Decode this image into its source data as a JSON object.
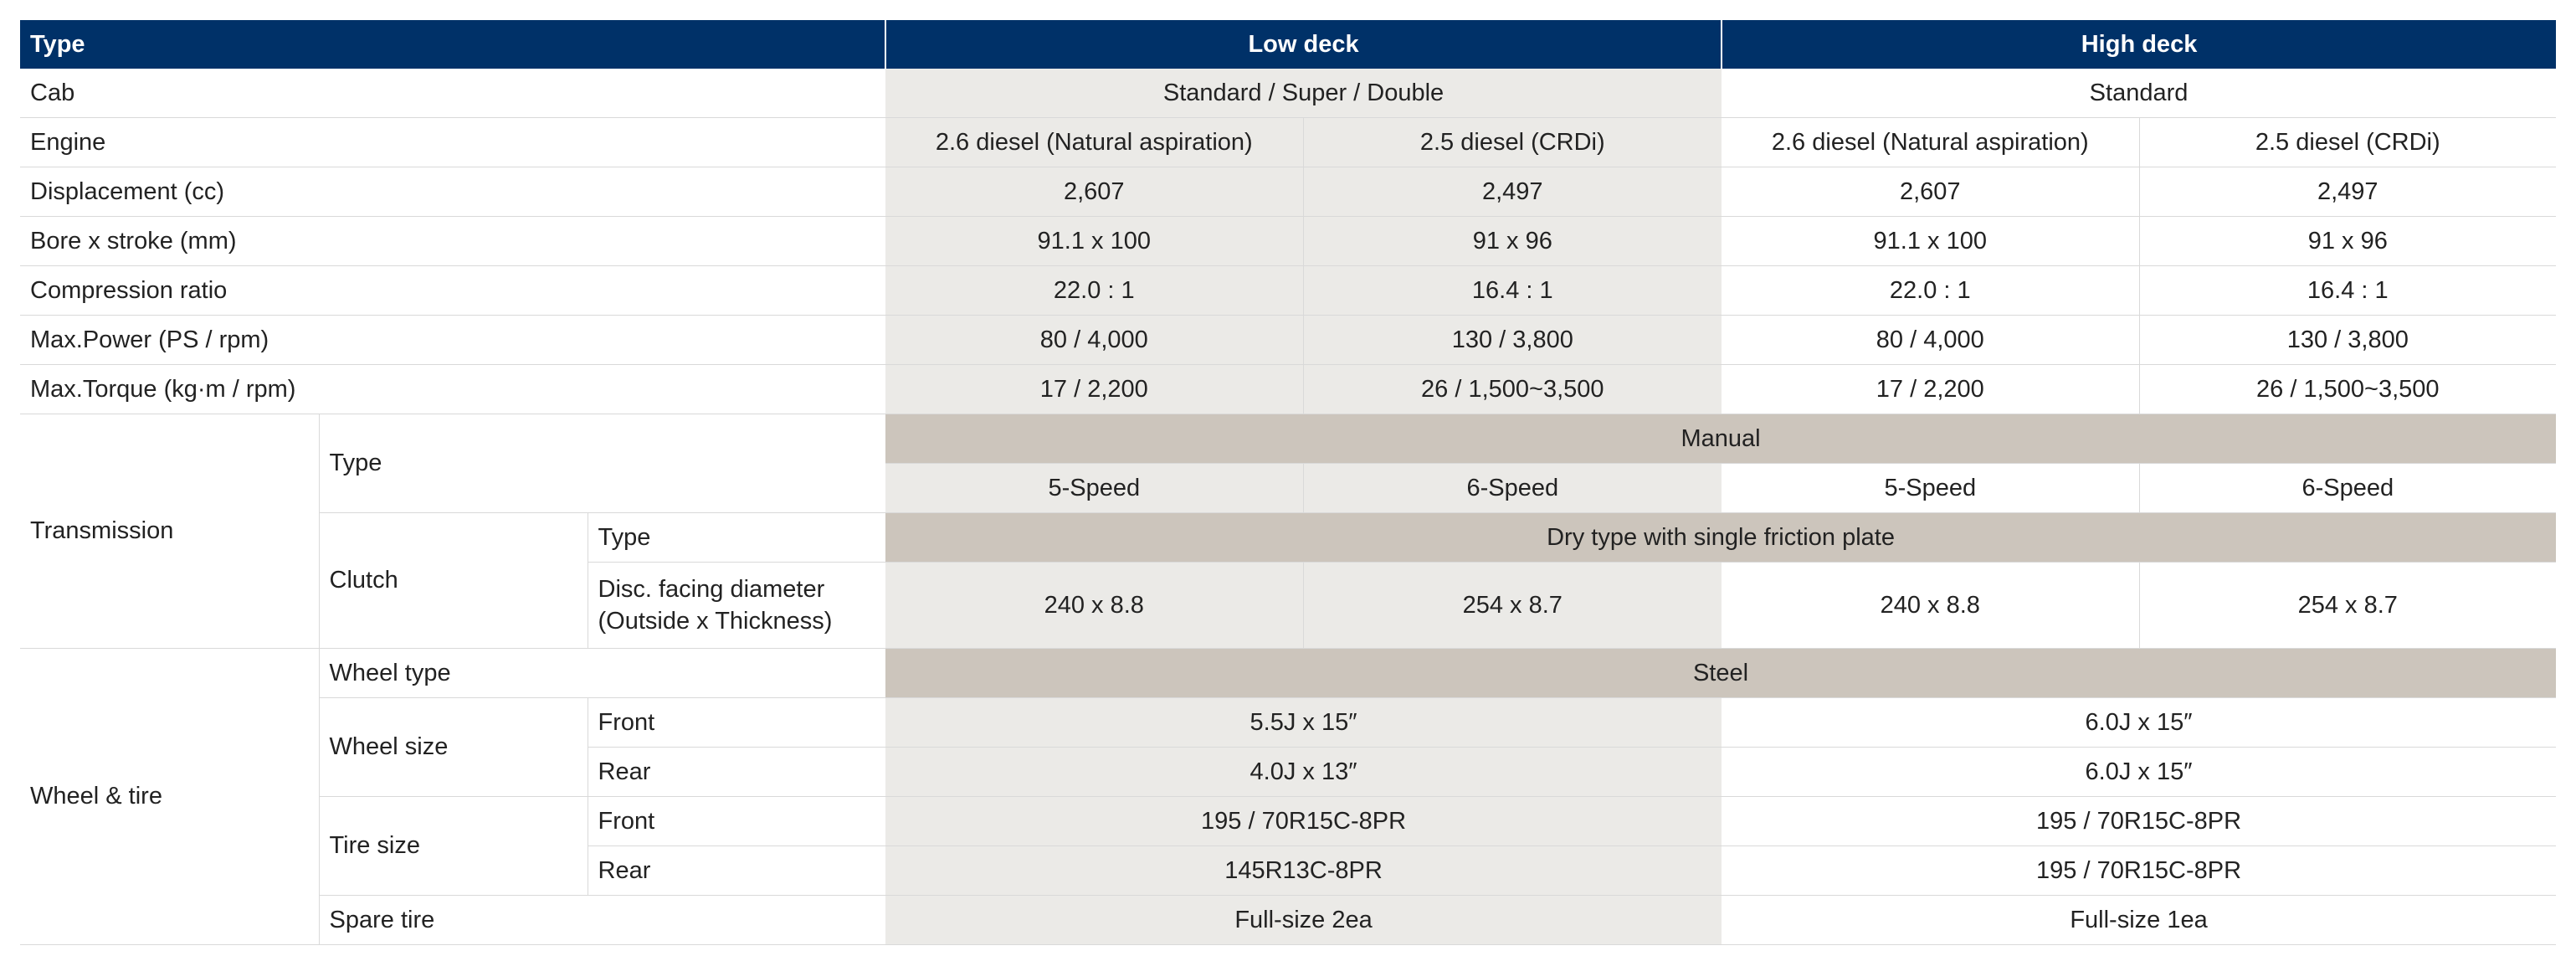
{
  "header": {
    "type": "Type",
    "low_deck": "Low deck",
    "high_deck": "High deck"
  },
  "cab": {
    "label": "Cab",
    "low": "Standard / Super / Double",
    "high": "Standard"
  },
  "engine": {
    "label": "Engine",
    "values": [
      "2.6 diesel (Natural aspiration)",
      "2.5 diesel (CRDi)",
      "2.6 diesel (Natural aspiration)",
      "2.5 diesel (CRDi)"
    ]
  },
  "displacement": {
    "label": "Displacement (cc)",
    "values": [
      "2,607",
      "2,497",
      "2,607",
      "2,497"
    ]
  },
  "bore": {
    "label": "Bore x stroke (mm)",
    "values": [
      "91.1 x 100",
      "91 x 96",
      "91.1 x 100",
      "91 x 96"
    ]
  },
  "compression": {
    "label": "Compression ratio",
    "values": [
      "22.0 : 1",
      "16.4 : 1",
      "22.0 : 1",
      "16.4 : 1"
    ]
  },
  "power": {
    "label": "Max.Power (PS / rpm)",
    "values": [
      "80 / 4,000",
      "130 / 3,800",
      "80 / 4,000",
      "130 / 3,800"
    ]
  },
  "torque": {
    "label": "Max.Torque (kg·m / rpm)",
    "values": [
      "17 / 2,200",
      "26 / 1,500~3,500",
      "17 / 2,200",
      "26 / 1,500~3,500"
    ]
  },
  "transmission": {
    "label": "Transmission",
    "type_label": "Type",
    "type_all": "Manual",
    "speeds": [
      "5-Speed",
      "6-Speed",
      "5-Speed",
      "6-Speed"
    ],
    "clutch_label": "Clutch",
    "clutch_type_label": "Type",
    "clutch_type_all": "Dry type with single friction plate",
    "disc_label_1": "Disc. facing diameter",
    "disc_label_2": "(Outside x Thickness)",
    "disc_values": [
      "240 x 8.8",
      "254 x 8.7",
      "240 x 8.8",
      "254 x 8.7"
    ]
  },
  "wheel": {
    "label": "Wheel & tire",
    "wheel_type_label": "Wheel type",
    "wheel_type_all": "Steel",
    "wheel_size_label": "Wheel size",
    "front_label": "Front",
    "rear_label": "Rear",
    "wheel_front": {
      "low": "5.5J x 15″",
      "high": "6.0J x 15″"
    },
    "wheel_rear": {
      "low": "4.0J x 13″",
      "high": "6.0J x 15″"
    },
    "tire_size_label": "Tire size",
    "tire_front": {
      "low": "195 / 70R15C-8PR",
      "high": "195 / 70R15C-8PR"
    },
    "tire_rear": {
      "low": "145R13C-8PR",
      "high": "195 / 70R15C-8PR"
    },
    "spare_label": "Spare tire",
    "spare": {
      "low": "Full-size 2ea",
      "high": "Full-size 1ea"
    }
  }
}
